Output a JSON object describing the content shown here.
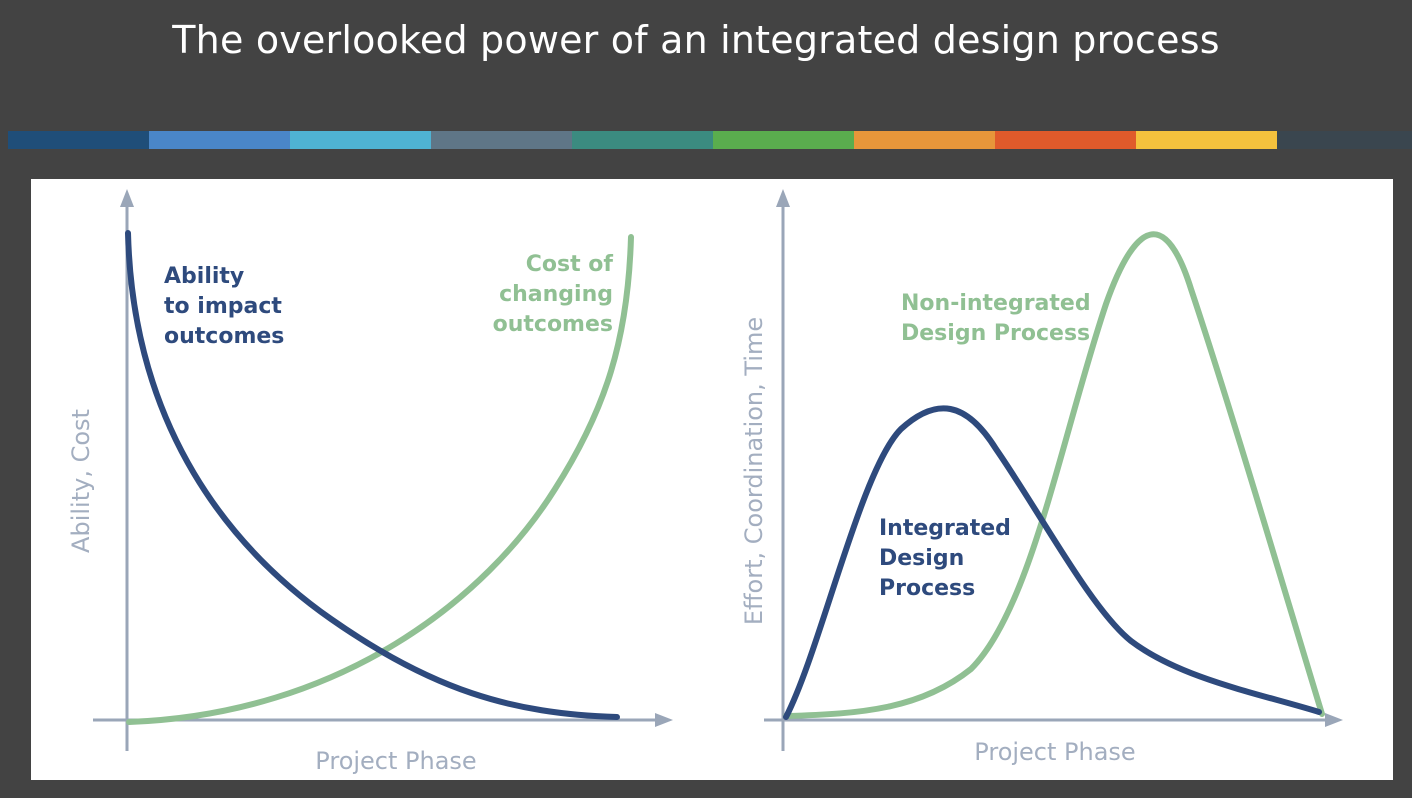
{
  "slide": {
    "title": "The overlooked power of an integrated design process"
  },
  "color_band": {
    "colors": [
      "#1f4e79",
      "#4a86c8",
      "#4fb3d3",
      "#5f7687",
      "#3b8b80",
      "#5aad4e",
      "#e7963a",
      "#e05a2b",
      "#f4c13d",
      "#3a464f"
    ]
  },
  "colors": {
    "navy_curve": "#2e4a7d",
    "green_curve": "#90c093",
    "axis": "#9aa6b8"
  },
  "left_chart": {
    "y_axis_label": "Ability, Cost",
    "x_axis_label": "Project Phase",
    "ability_label": [
      "Ability",
      "to impact",
      "outcomes"
    ],
    "cost_label": [
      "Cost of",
      "changing",
      "outcomes"
    ]
  },
  "right_chart": {
    "y_axis_label": "Effort, Coordination, Time",
    "x_axis_label": "Project Phase",
    "integrated_label": [
      "Integrated",
      "Design",
      "Process"
    ],
    "non_integrated_label": [
      "Non-integrated",
      "Design Process"
    ]
  }
}
